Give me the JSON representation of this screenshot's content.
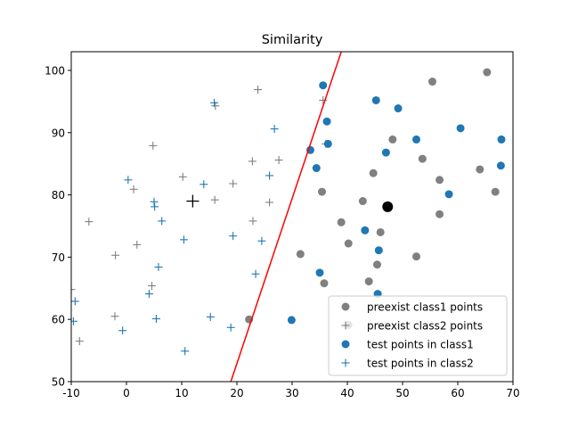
{
  "chart_data": {
    "type": "scatter",
    "title": "Similarity",
    "xlabel": "",
    "ylabel": "",
    "xlim": [
      -10,
      70
    ],
    "ylim": [
      50,
      103
    ],
    "xticks": [
      -10,
      0,
      10,
      20,
      30,
      40,
      50,
      60,
      70
    ],
    "yticks": [
      50,
      60,
      70,
      80,
      90,
      100
    ],
    "grid": false,
    "legend_position": "lower-right",
    "colors": {
      "class1": "#1f77b4",
      "class2": "#1f77b4",
      "preexist": "#808080",
      "line": "#ff0000",
      "centroid": "#000000"
    },
    "series": [
      {
        "name": "preexist class1 points",
        "marker": "circle",
        "color": "#808080",
        "points": [
          [
            65.3,
            99.7
          ],
          [
            55.4,
            98.2
          ],
          [
            53.6,
            85.8
          ],
          [
            56.7,
            82.4
          ],
          [
            64,
            84.1
          ],
          [
            66.8,
            80.5
          ],
          [
            56.7,
            76.9
          ],
          [
            48.2,
            88.9
          ],
          [
            44.7,
            83.5
          ],
          [
            42.8,
            79
          ],
          [
            38.9,
            75.6
          ],
          [
            40.2,
            72.2
          ],
          [
            46,
            74
          ],
          [
            35.4,
            80.5
          ],
          [
            31.5,
            70.5
          ],
          [
            35.8,
            65.8
          ],
          [
            43.9,
            66.1
          ],
          [
            45.4,
            68.8
          ],
          [
            52.5,
            70.1
          ],
          [
            22.2,
            60
          ],
          [
            40.2,
            59.1
          ]
        ]
      },
      {
        "name": "preexist class2 points",
        "marker": "plus",
        "color": "#808080",
        "points": [
          [
            23.8,
            96.9
          ],
          [
            35.6,
            95.2
          ],
          [
            16.1,
            94.3
          ],
          [
            4.8,
            87.9
          ],
          [
            22.8,
            85.4
          ],
          [
            27.6,
            85.6
          ],
          [
            36.1,
            88.2
          ],
          [
            10.2,
            82.9
          ],
          [
            19.3,
            81.8
          ],
          [
            16,
            79.2
          ],
          [
            1.3,
            80.9
          ],
          [
            25.9,
            78.8
          ],
          [
            -6.8,
            75.7
          ],
          [
            1.9,
            72
          ],
          [
            22.9,
            75.8
          ],
          [
            -2,
            70.3
          ],
          [
            4.6,
            65.4
          ],
          [
            -2.1,
            60.5
          ],
          [
            -8.5,
            56.5
          ],
          [
            -10,
            64.8
          ]
        ]
      },
      {
        "name": "test points in class1",
        "marker": "circle",
        "color": "#1f77b4",
        "points": [
          [
            35.6,
            97.6
          ],
          [
            45.2,
            95.2
          ],
          [
            49.2,
            93.9
          ],
          [
            36.3,
            91.8
          ],
          [
            60.5,
            90.7
          ],
          [
            52.5,
            88.9
          ],
          [
            36.5,
            88.2
          ],
          [
            67.9,
            88.9
          ],
          [
            47,
            86.8
          ],
          [
            33.3,
            87.2
          ],
          [
            34.4,
            84.3
          ],
          [
            67.8,
            84.7
          ],
          [
            58.4,
            80.1
          ],
          [
            43.2,
            74.3
          ],
          [
            45.7,
            71.1
          ],
          [
            35,
            67.5
          ],
          [
            45.5,
            64.1
          ],
          [
            29.9,
            59.9
          ]
        ]
      },
      {
        "name": "test points in class2",
        "marker": "plus",
        "color": "#1f77b4",
        "points": [
          [
            15.9,
            94.8
          ],
          [
            26.8,
            90.6
          ],
          [
            0.3,
            82.4
          ],
          [
            14,
            81.7
          ],
          [
            25.9,
            83.1
          ],
          [
            5,
            78.9
          ],
          [
            5.1,
            78.1
          ],
          [
            6.4,
            75.8
          ],
          [
            19.3,
            73.4
          ],
          [
            10.4,
            72.8
          ],
          [
            24.5,
            72.6
          ],
          [
            5.8,
            68.4
          ],
          [
            4.1,
            64.1
          ],
          [
            23.4,
            67.3
          ],
          [
            -9.3,
            62.9
          ],
          [
            5.4,
            60.1
          ],
          [
            15.2,
            60.4
          ],
          [
            -0.7,
            58.2
          ],
          [
            18.9,
            58.7
          ],
          [
            -9.6,
            59.7
          ],
          [
            10.6,
            54.9
          ]
        ]
      }
    ],
    "centroids": [
      {
        "marker": "plus",
        "color": "#000000",
        "x": 12,
        "y": 79
      },
      {
        "marker": "circle",
        "color": "#000000",
        "x": 47.3,
        "y": 78.1
      }
    ],
    "decision_line": {
      "color": "#ff0000",
      "points": [
        [
          18.9,
          50
        ],
        [
          38.9,
          103
        ]
      ]
    }
  }
}
